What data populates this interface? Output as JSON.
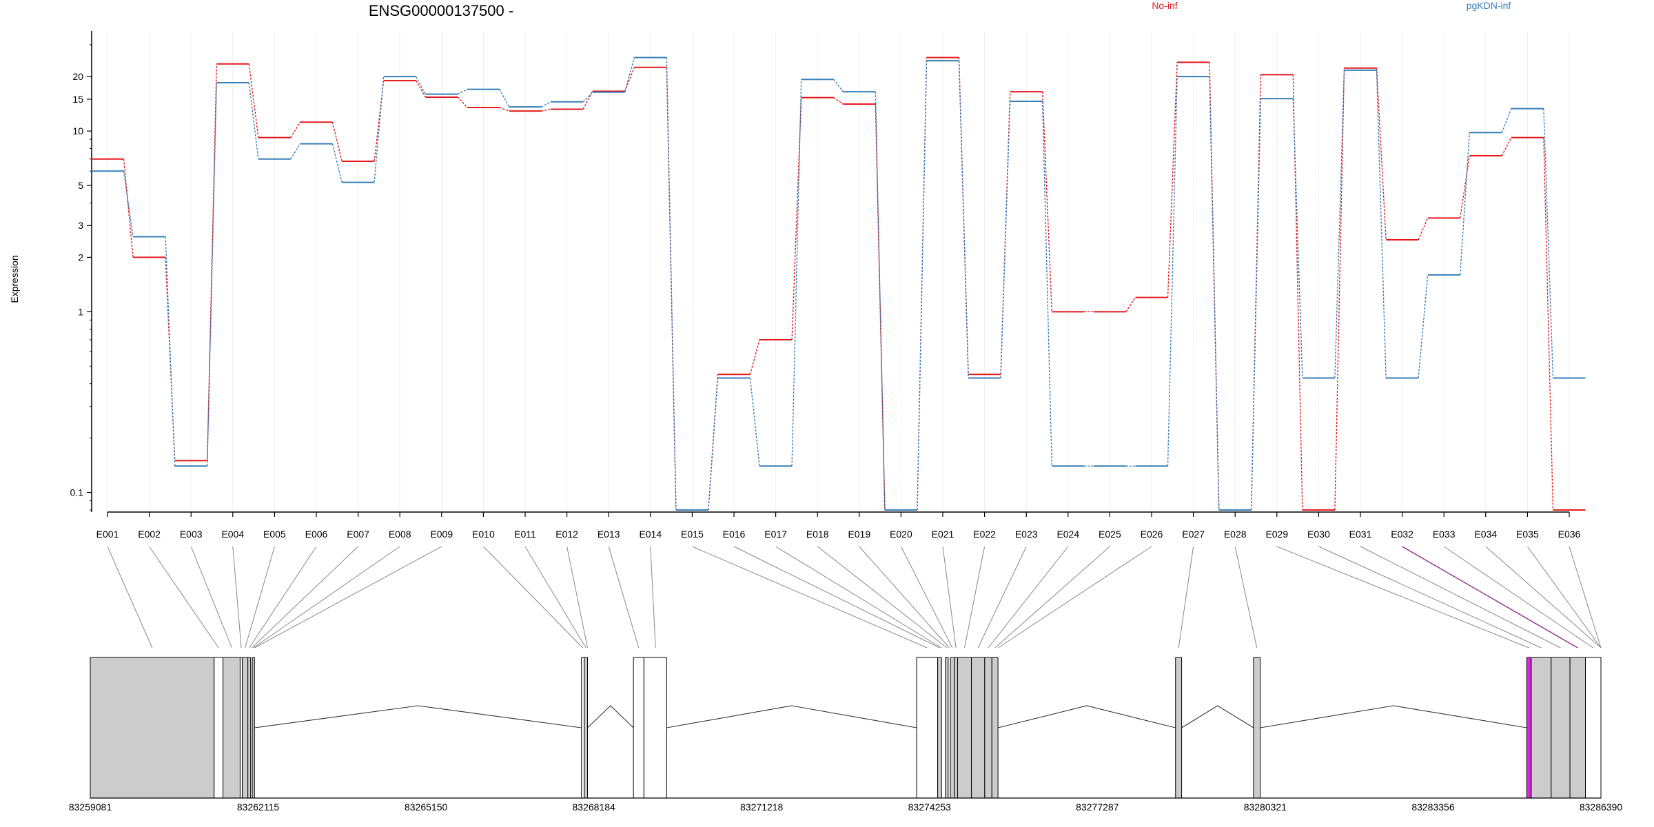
{
  "chart_data": {
    "type": "line",
    "title": "ENSG00000137500 -",
    "ylabel": "Expression",
    "xlabel": "",
    "y_scale": "log",
    "ylim": [
      0.08,
      30
    ],
    "grid": "vertical-faint",
    "legend_placement": "top-right",
    "y_ticks": [
      0.1,
      1,
      2,
      3,
      5,
      10,
      15,
      20
    ],
    "y_tick_labels": [
      "0.1",
      "1",
      "2",
      "3",
      "5",
      "10",
      "15",
      "20"
    ],
    "categories": [
      "E001",
      "E002",
      "E003",
      "E004",
      "E005",
      "E006",
      "E007",
      "E008",
      "E009",
      "E010",
      "E011",
      "E012",
      "E013",
      "E014",
      "E015",
      "E016",
      "E017",
      "E018",
      "E019",
      "E020",
      "E021",
      "E022",
      "E023",
      "E024",
      "E025",
      "E026",
      "E027",
      "E028",
      "E029",
      "E030",
      "E031",
      "E032",
      "E033",
      "E034",
      "E035",
      "E036"
    ],
    "series": [
      {
        "name": "No-inf",
        "color": "#e41a1c",
        "values": [
          7.0,
          2.0,
          0.15,
          23.5,
          9.2,
          11.2,
          6.8,
          19.0,
          15.4,
          13.5,
          12.9,
          13.2,
          16.6,
          22.5,
          0.08,
          0.45,
          0.7,
          15.3,
          14.1,
          0.08,
          25.5,
          0.45,
          16.5,
          1.0,
          1.0,
          1.2,
          24.0,
          0.08,
          20.5,
          0.08,
          22.3,
          2.5,
          3.3,
          7.3,
          9.2,
          0.08
        ]
      },
      {
        "name": "pgKDN-inf",
        "color": "#377eb8",
        "values": [
          6.0,
          2.6,
          0.14,
          18.5,
          7.0,
          8.5,
          5.2,
          20.0,
          16.0,
          17.0,
          13.6,
          14.5,
          16.4,
          25.5,
          0.08,
          0.43,
          0.14,
          19.3,
          16.5,
          0.08,
          24.5,
          0.43,
          14.6,
          0.14,
          0.14,
          0.14,
          20.0,
          0.08,
          15.1,
          0.43,
          21.7,
          0.43,
          1.6,
          9.8,
          13.3,
          0.43
        ]
      }
    ],
    "gene_model": {
      "coordinates": [
        "83259081",
        "83262115",
        "83265150",
        "83268184",
        "83271218",
        "83274253",
        "83277287",
        "83280321",
        "83283356",
        "83286390"
      ],
      "coord_values": [
        83259081,
        83262115,
        83265150,
        83268184,
        83271218,
        83274253,
        83277287,
        83280321,
        83283356,
        83286390
      ],
      "blocks": [
        {
          "start": 83259081,
          "end": 83261320,
          "fill": "#cccccc"
        },
        {
          "start": 83261320,
          "end": 83261480,
          "fill": "#ffffff"
        },
        {
          "start": 83261480,
          "end": 83261790,
          "fill": "#cccccc"
        },
        {
          "start": 83261790,
          "end": 83261830,
          "fill": "#ffffff"
        },
        {
          "start": 83261830,
          "end": 83261930,
          "fill": "#cccccc"
        },
        {
          "start": 83261930,
          "end": 83261980,
          "fill": "#cccccc"
        },
        {
          "start": 83262010,
          "end": 83262050,
          "fill": "#cccccc"
        },
        {
          "start": 83267960,
          "end": 83268010,
          "fill": "#ffffff"
        },
        {
          "start": 83268010,
          "end": 83268070,
          "fill": "#cccccc"
        },
        {
          "start": 83268900,
          "end": 83269090,
          "fill": "#ffffff"
        },
        {
          "start": 83269090,
          "end": 83269500,
          "fill": "#ffffff"
        },
        {
          "start": 83274020,
          "end": 83274400,
          "fill": "#ffffff"
        },
        {
          "start": 83274400,
          "end": 83274470,
          "fill": "#cccccc"
        },
        {
          "start": 83274540,
          "end": 83274590,
          "fill": "#cccccc"
        },
        {
          "start": 83274630,
          "end": 83274700,
          "fill": "#cccccc"
        },
        {
          "start": 83274700,
          "end": 83274760,
          "fill": "#cccccc"
        },
        {
          "start": 83274760,
          "end": 83275010,
          "fill": "#cccccc"
        },
        {
          "start": 83275010,
          "end": 83275250,
          "fill": "#cccccc"
        },
        {
          "start": 83275250,
          "end": 83275380,
          "fill": "#cccccc"
        },
        {
          "start": 83275380,
          "end": 83275490,
          "fill": "#cccccc"
        },
        {
          "start": 83278700,
          "end": 83278810,
          "fill": "#cccccc"
        },
        {
          "start": 83280110,
          "end": 83280230,
          "fill": "#cccccc"
        },
        {
          "start": 83285050,
          "end": 83285130,
          "fill": "#dd22dd"
        },
        {
          "start": 83285130,
          "end": 83285490,
          "fill": "#cccccc"
        },
        {
          "start": 83285490,
          "end": 83285830,
          "fill": "#cccccc"
        },
        {
          "start": 83285830,
          "end": 83286110,
          "fill": "#cccccc"
        },
        {
          "start": 83286110,
          "end": 83286390,
          "fill": "#ffffff"
        }
      ],
      "introns": [
        [
          83262050,
          83267960
        ],
        [
          83268070,
          83268900
        ],
        [
          83269500,
          83274020
        ],
        [
          83275490,
          83278700
        ],
        [
          83278810,
          83280110
        ],
        [
          83280230,
          83285050
        ]
      ],
      "exon_targets": [
        83260200,
        83261400,
        83261640,
        83261810,
        83261880,
        83261955,
        83262000,
        83262030,
        83262050,
        83267985,
        83268040,
        83268070,
        83268995,
        83269300,
        83274210,
        83274435,
        83274470,
        83274565,
        83274610,
        83274665,
        83274730,
        83274885,
        83275130,
        83275315,
        83275435,
        83275490,
        83278755,
        83280170,
        83285090,
        83285310,
        83285660,
        83285970,
        83286250,
        83286390,
        83286390,
        83286390
      ]
    }
  }
}
